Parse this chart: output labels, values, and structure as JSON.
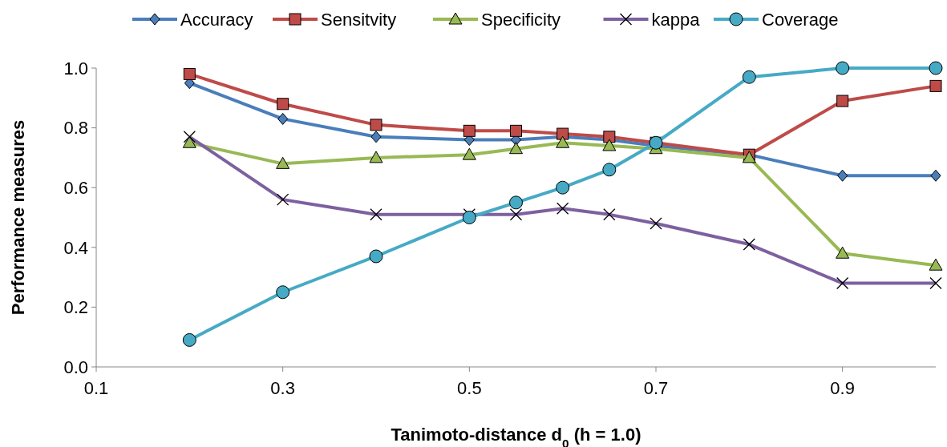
{
  "chart_data": {
    "type": "line",
    "xlabel": "Tanimoto-distance d$_{0}$ (h = 1.0)",
    "ylabel": "Performance measures",
    "x": [
      0.2,
      0.3,
      0.4,
      0.5,
      0.55,
      0.6,
      0.65,
      0.7,
      0.8,
      0.9,
      1.0
    ],
    "xlim": [
      0.1,
      1.0
    ],
    "xticks": [
      0.1,
      0.3,
      0.5,
      0.7,
      0.9
    ],
    "ylim": [
      0,
      1.0
    ],
    "yticks": [
      {
        "value": 0,
        "label": "0.0"
      },
      {
        "value": 0.2,
        "label": "0.2"
      },
      {
        "value": 0.4,
        "label": "0.4"
      },
      {
        "value": 0.6,
        "label": "0.6"
      },
      {
        "value": 0.8,
        "label": "0.8"
      },
      {
        "value": 1.0,
        "label": "1.0"
      }
    ],
    "grid": false,
    "legend": "top",
    "series": [
      {
        "name": "Accuracy",
        "color": "#4a7ebb",
        "marker": "diamond",
        "values": [
          0.95,
          0.83,
          0.77,
          0.76,
          0.76,
          0.77,
          0.76,
          0.74,
          0.71,
          0.64,
          0.64
        ]
      },
      {
        "name": "Sensitvity",
        "color": "#be4b48",
        "marker": "square",
        "values": [
          0.98,
          0.88,
          0.81,
          0.79,
          0.79,
          0.78,
          0.77,
          0.75,
          0.71,
          0.89,
          0.94
        ]
      },
      {
        "name": "Specificity",
        "color": "#98b954",
        "marker": "triangle",
        "values": [
          0.75,
          0.68,
          0.7,
          0.71,
          0.73,
          0.75,
          0.74,
          0.73,
          0.7,
          0.38,
          0.34
        ]
      },
      {
        "name": "kappa",
        "color": "#7d60a0",
        "marker": "cross",
        "values": [
          0.77,
          0.56,
          0.51,
          0.51,
          0.51,
          0.53,
          0.51,
          0.48,
          0.41,
          0.28,
          0.28
        ]
      },
      {
        "name": "Coverage",
        "color": "#46aac5",
        "marker": "circle",
        "values": [
          0.09,
          0.25,
          0.37,
          0.5,
          0.55,
          0.6,
          0.66,
          0.75,
          0.97,
          1.0,
          1.0
        ]
      }
    ]
  }
}
